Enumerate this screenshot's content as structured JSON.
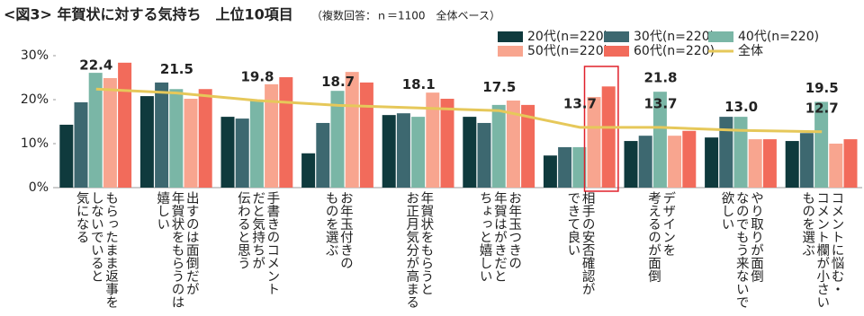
{
  "chart_data": {
    "type": "bar",
    "title": "<図3> 年賀状に対する気持ち　上位10項目",
    "subtitle": "（複数回答：ｎ＝1100　全体ベース）",
    "categories": [
      "もらったまま返事を\nしないでいると\n気になる",
      "出すのは面倒だが\n年賀状をもらうのは\n嬉しい",
      "手書きのコメント\nだと気持ちが\n伝わると思う",
      "お年玉付きの\nものを選ぶ",
      "年賀状をもらうと\nお正月気分が高まる",
      "お年玉つきの\n年賀はがきだと\nちょっと嬉しい",
      "相手の安否確認が\nできて良い",
      "デザインを\n考えるのが面倒",
      "やり取りが面倒\nなのでもう来ないで\n欲しい",
      "コメントに悩む・\nコメント欄が小さい\nものを選ぶ"
    ],
    "series": [
      {
        "name": "20代(n=220)",
        "color": "#0f3a3d",
        "values": [
          14.3,
          20.8,
          16.1,
          7.8,
          16.5,
          16.1,
          7.3,
          10.6,
          11.4,
          10.6
        ]
      },
      {
        "name": "30代(n=220)",
        "color": "#3d6870",
        "values": [
          19.4,
          23.9,
          15.7,
          14.7,
          16.9,
          14.7,
          9.2,
          11.8,
          16.1,
          12.4
        ]
      },
      {
        "name": "40代(n=220)",
        "color": "#7ab6a6",
        "values": [
          26.1,
          22.4,
          20,
          22,
          16.1,
          18.8,
          9.2,
          21.8,
          16.1,
          19.5
        ],
        "value_labels": [
          null,
          null,
          null,
          null,
          null,
          null,
          null,
          "21.8",
          null,
          "19.5"
        ]
      },
      {
        "name": "50代(n=220)",
        "color": "#f8a58f",
        "values": [
          24.9,
          20.2,
          23.5,
          26.3,
          21.6,
          19.8,
          20.6,
          11.8,
          11,
          10
        ]
      },
      {
        "name": "60代(n=220)",
        "color": "#f26b5b",
        "values": [
          28.4,
          22.4,
          25.1,
          23.9,
          20.2,
          18.8,
          23,
          12.9,
          11,
          11
        ]
      },
      {
        "name": "全体",
        "type": "line",
        "color": "#e6c85a",
        "values": [
          22.4,
          21.5,
          19.8,
          18.7,
          18.1,
          17.5,
          13.7,
          13.7,
          13.0,
          12.7
        ],
        "value_labels": [
          "22.4",
          "21.5",
          "19.8",
          "18.7",
          "18.1",
          "17.5",
          "13.7",
          "13.7",
          "13.0",
          "12.7"
        ]
      }
    ],
    "ylim": [
      0,
      30
    ],
    "yticks": [
      {
        "value": 0,
        "label": "0%"
      },
      {
        "value": 10,
        "label": "10%"
      },
      {
        "value": 20,
        "label": "20%"
      },
      {
        "value": 30,
        "label": "30%"
      }
    ],
    "grid": false,
    "legend": "top-right",
    "highlight": {
      "category": 6,
      "series": [
        3,
        4
      ],
      "color": "#e0202a"
    }
  }
}
